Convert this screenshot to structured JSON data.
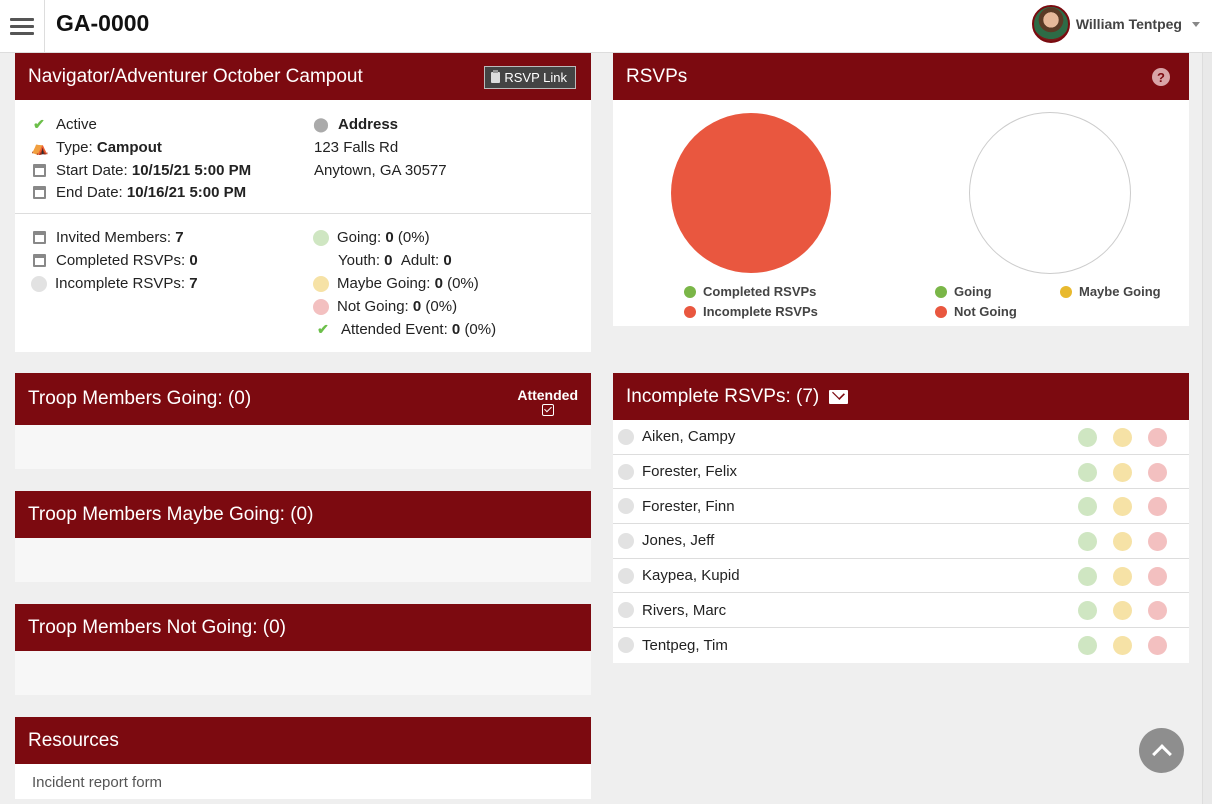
{
  "header": {
    "app_title": "GA-0000",
    "user_name": "William Tentpeg",
    "menu_icon": "hamburger-menu-icon"
  },
  "event": {
    "title": "Navigator/Adventurer October Campout",
    "rsvp_link_label": "RSVP Link",
    "status": "Active",
    "type_label": "Type:",
    "type_value": "Campout",
    "start_label": "Start Date:",
    "start_value": "10/15/21 5:00 PM",
    "end_label": "End Date:",
    "end_value": "10/16/21 5:00 PM",
    "address_label": "Address",
    "address_line1": "123 Falls Rd",
    "address_line2": "Anytown, GA 30577",
    "invited_label": "Invited Members:",
    "invited_value": "7",
    "completed_label": "Completed RSVPs:",
    "completed_value": "0",
    "incomplete_label": "Incomplete RSVPs:",
    "incomplete_value": "7",
    "going_label": "Going:",
    "going_value": "0",
    "going_pct": "(0%)",
    "youth_label": "Youth:",
    "youth_value": "0",
    "adult_label": "Adult:",
    "adult_value": "0",
    "maybe_label": "Maybe Going:",
    "maybe_value": "0",
    "maybe_pct": "(0%)",
    "notgoing_label": "Not Going:",
    "notgoing_value": "0",
    "notgoing_pct": "(0%)",
    "attended_label": "Attended Event:",
    "attended_value": "0",
    "attended_pct": "(0%)"
  },
  "sections": {
    "going_title": "Troop Members Going: (0)",
    "attended_label": "Attended",
    "maybe_title": "Troop Members Maybe Going: (0)",
    "notgoing_title": "Troop Members Not Going: (0)",
    "resources_title": "Resources",
    "resources_item": "Incident report form"
  },
  "rsvps": {
    "title": "RSVPs",
    "help": "?",
    "legend_completed": "Completed RSVPs",
    "legend_incomplete": "Incomplete RSVPs",
    "legend_going": "Going",
    "legend_maybe": "Maybe Going",
    "legend_notgoing": "Not Going",
    "colors": {
      "completed": "#7ab648",
      "incomplete": "#e9573f",
      "going": "#7ab648",
      "maybe": "#e8b92e",
      "notgoing": "#e9573f",
      "header_bg": "#7c0a10"
    },
    "pie1_incomplete_fraction": 1.0,
    "pie2_total": 0
  },
  "incomplete": {
    "title": "Incomplete RSVPs: (7)",
    "members": [
      "Aiken, Campy",
      "Forester, Felix",
      "Forester, Finn",
      "Jones, Jeff",
      "Kaypea, Kupid",
      "Rivers, Marc",
      "Tentpeg, Tim"
    ]
  }
}
